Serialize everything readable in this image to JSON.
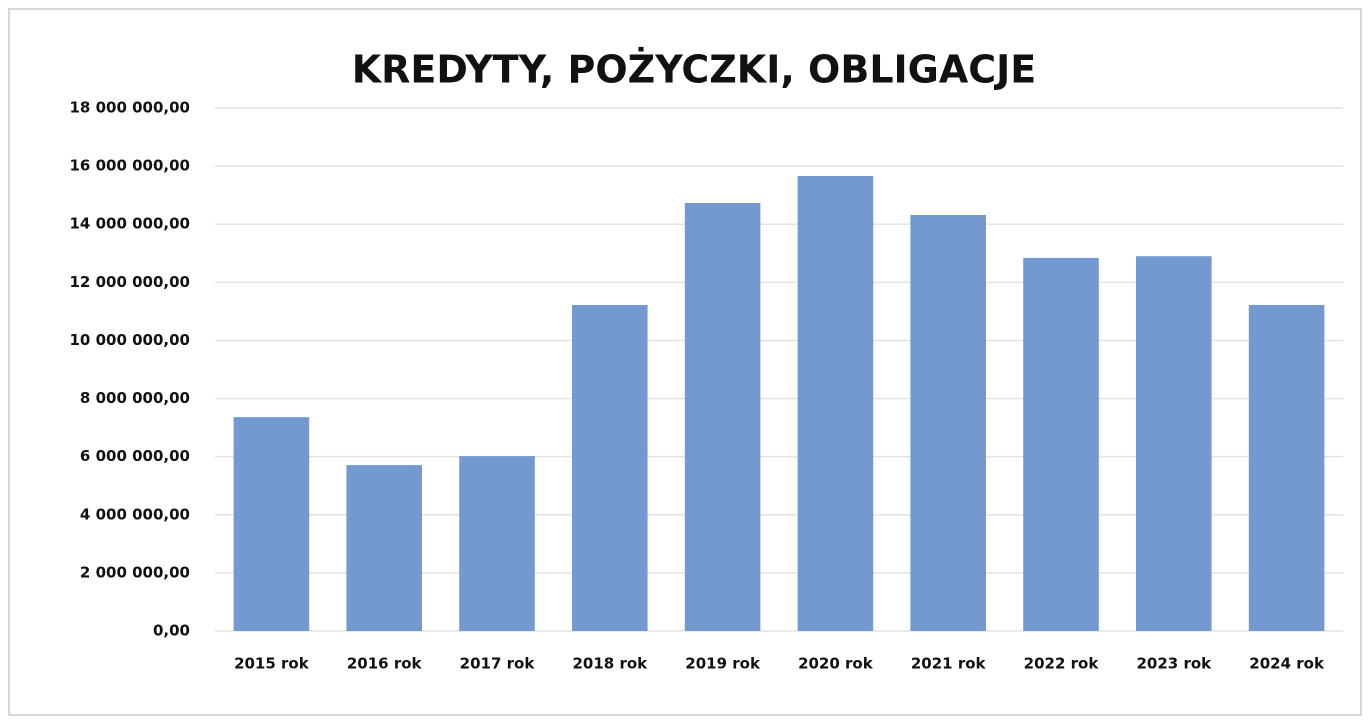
{
  "chart_data": {
    "type": "bar",
    "title": "KREDYTY, POŻYCZKI, OBLIGACJE",
    "categories": [
      "2015 rok",
      "2016 rok",
      "2017 rok",
      "2018 rok",
      "2019 rok",
      "2020 rok",
      "2021 rok",
      "2022 rok",
      "2023 rok",
      "2024 rok"
    ],
    "values": [
      7360000,
      5710000,
      6020000,
      11220000,
      14730000,
      15660000,
      14320000,
      12840000,
      12900000,
      11220000
    ],
    "color": "#7499d1",
    "ylim": [
      0,
      18000000
    ],
    "yticks": [
      {
        "value": 0,
        "label": "0,00"
      },
      {
        "value": 2000000,
        "label": "2 000 000,00"
      },
      {
        "value": 4000000,
        "label": "4 000 000,00"
      },
      {
        "value": 6000000,
        "label": "6 000 000,00"
      },
      {
        "value": 8000000,
        "label": "8 000 000,00"
      },
      {
        "value": 10000000,
        "label": "10 000 000,00"
      },
      {
        "value": 12000000,
        "label": "12 000 000,00"
      },
      {
        "value": 14000000,
        "label": "14 000 000,00"
      },
      {
        "value": 16000000,
        "label": "16 000 000,00"
      },
      {
        "value": 18000000,
        "label": "18 000 000,00"
      }
    ],
    "grid": true
  }
}
